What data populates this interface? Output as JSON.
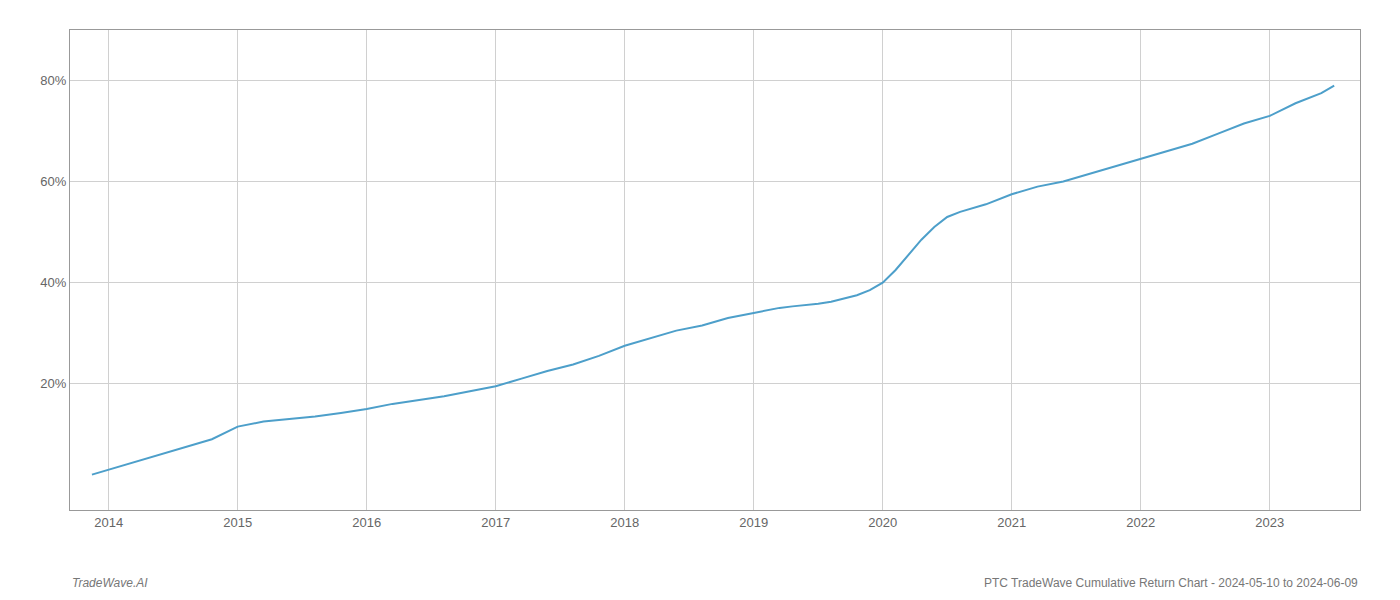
{
  "chart_data": {
    "type": "line",
    "x": [
      2013.87,
      2014.0,
      2014.2,
      2014.4,
      2014.6,
      2014.8,
      2015.0,
      2015.2,
      2015.4,
      2015.6,
      2015.8,
      2016.0,
      2016.2,
      2016.4,
      2016.6,
      2016.8,
      2017.0,
      2017.2,
      2017.4,
      2017.6,
      2017.8,
      2018.0,
      2018.2,
      2018.4,
      2018.6,
      2018.8,
      2019.0,
      2019.1,
      2019.2,
      2019.3,
      2019.4,
      2019.5,
      2019.6,
      2019.7,
      2019.8,
      2019.9,
      2020.0,
      2020.1,
      2020.2,
      2020.3,
      2020.4,
      2020.5,
      2020.6,
      2020.7,
      2020.8,
      2021.0,
      2021.2,
      2021.4,
      2021.6,
      2021.8,
      2022.0,
      2022.2,
      2022.4,
      2022.6,
      2022.8,
      2023.0,
      2023.2,
      2023.4,
      2023.5
    ],
    "values": [
      2.0,
      3.0,
      4.5,
      6.0,
      7.5,
      9.0,
      11.5,
      12.5,
      13.0,
      13.5,
      14.2,
      15.0,
      16.0,
      16.8,
      17.5,
      18.5,
      19.5,
      21.0,
      22.5,
      23.8,
      25.5,
      27.5,
      29.0,
      30.5,
      31.5,
      33.0,
      34.0,
      34.5,
      35.0,
      35.3,
      35.5,
      35.8,
      36.2,
      36.8,
      37.5,
      38.5,
      40.0,
      42.5,
      45.5,
      48.5,
      51.0,
      53.0,
      54.0,
      54.8,
      55.5,
      57.5,
      59.0,
      60.0,
      61.5,
      63.0,
      64.5,
      66.0,
      67.5,
      69.5,
      71.5,
      73.0,
      75.5,
      77.5,
      79.0
    ],
    "color": "#4d9fca",
    "xlim": [
      2013.7,
      2023.7
    ],
    "ylim": [
      -5,
      90
    ],
    "xticks": [
      2014,
      2015,
      2016,
      2017,
      2018,
      2019,
      2020,
      2021,
      2022,
      2023
    ],
    "yticks": [
      {
        "value": 20,
        "label": "20%"
      },
      {
        "value": 40,
        "label": "40%"
      },
      {
        "value": 60,
        "label": "60%"
      },
      {
        "value": 80,
        "label": "80%"
      }
    ],
    "grid": true,
    "annotations": [
      "TradeWave.AI",
      "PTC TradeWave Cumulative Return Chart - 2024-05-10 to 2024-06-09"
    ]
  }
}
